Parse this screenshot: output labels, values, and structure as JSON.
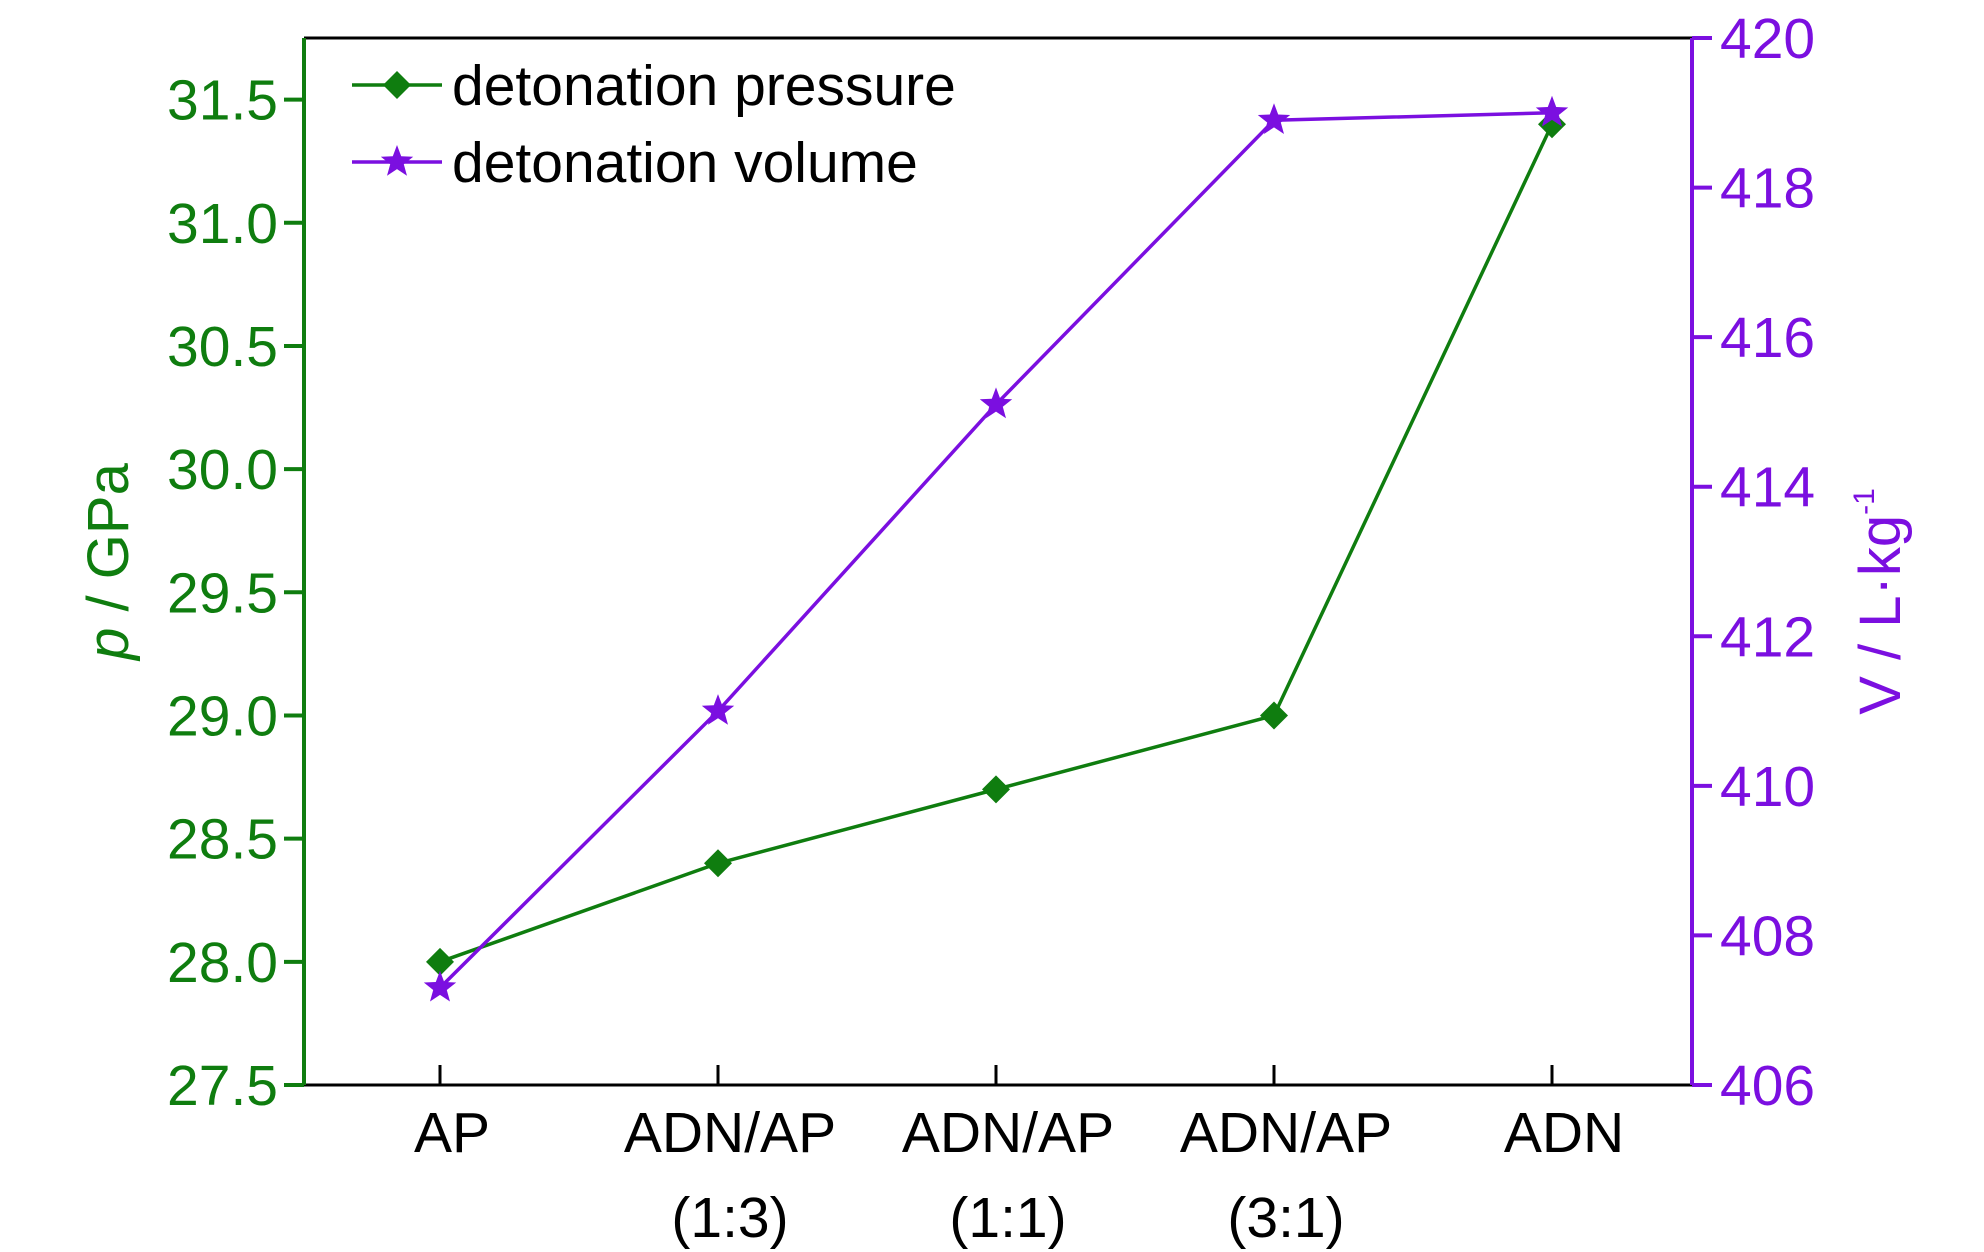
{
  "chart_data": {
    "type": "line",
    "categories": [
      "AP",
      "ADN/AP\n(1:3)",
      "ADN/AP\n(1:1)",
      "ADN/AP\n(3:1)",
      "ADN"
    ],
    "series": [
      {
        "name": "detonation pressure",
        "axis": "left",
        "marker": "diamond",
        "color": "#0f7d0f",
        "values": [
          28.0,
          28.4,
          28.7,
          29.0,
          31.4
        ]
      },
      {
        "name": "detonation volume",
        "axis": "right",
        "marker": "star",
        "color": "#7b0fe0",
        "values": [
          407.3,
          411.0,
          415.1,
          418.9,
          419.0
        ]
      }
    ],
    "y_left": {
      "label_italic": "p",
      "label_rest": " / GPa",
      "min": 27.5,
      "max": 31.75,
      "ticks": [
        "27.5",
        "28.0",
        "28.5",
        "29.0",
        "29.5",
        "30.0",
        "30.5",
        "31.0",
        "31.5"
      ],
      "color": "#0f7d0f"
    },
    "y_right": {
      "label": "V / L·kg",
      "label_sup": "-1",
      "min": 406,
      "max": 420,
      "ticks": [
        "406",
        "408",
        "410",
        "412",
        "414",
        "416",
        "418",
        "420"
      ],
      "color": "#7b0fe0"
    },
    "legend_position": "top-left",
    "grid": false
  }
}
